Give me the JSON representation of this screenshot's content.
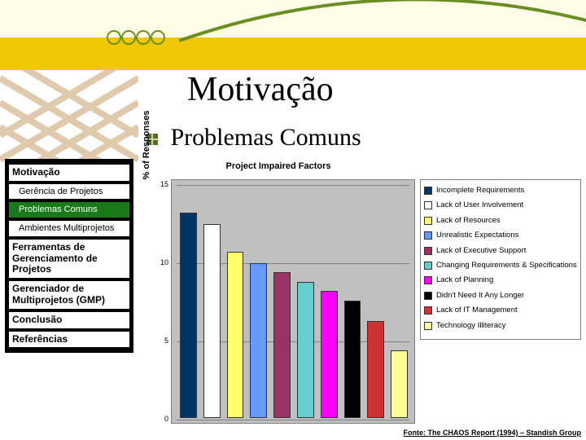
{
  "slide": {
    "title": "Motivação",
    "section": "Problemas Comuns"
  },
  "sidebar": {
    "items": [
      {
        "label": "Motivação",
        "kind": "head"
      },
      {
        "label": "Gerência de Projetos",
        "kind": "indent"
      },
      {
        "label": "Problemas Comuns",
        "kind": "active"
      },
      {
        "label": "Ambientes Multiprojetos",
        "kind": "indent"
      },
      {
        "label": "Ferramentas de Gerenciamento de Projetos",
        "kind": "head"
      },
      {
        "label": "Gerenciador de Multiprojetos (GMP)",
        "kind": "head"
      },
      {
        "label": "Conclusão",
        "kind": "head"
      },
      {
        "label": "Referências",
        "kind": "head"
      }
    ]
  },
  "chart": {
    "type": "bar",
    "title": "Project Impaired Factors",
    "y_label": "% of Responses",
    "y_min": 0,
    "y_max": 15,
    "y_ticks": [
      0,
      5,
      10,
      15
    ],
    "plot_bg": "#c0c0c0",
    "grid_color": "#808080",
    "series": [
      {
        "label": "Incomplete Requirements",
        "value": 13.1,
        "color": "#003366"
      },
      {
        "label": "Lack of User Involvement",
        "value": 12.4,
        "color": "#ffffff"
      },
      {
        "label": "Lack of Resources",
        "value": 10.6,
        "color": "#ffff66"
      },
      {
        "label": "Unrealistic Expectations",
        "value": 9.9,
        "color": "#6699ff"
      },
      {
        "label": "Lack of Executive Support",
        "value": 9.3,
        "color": "#993366"
      },
      {
        "label": "Changing Requirements & Specifications",
        "value": 8.7,
        "color": "#66cccc"
      },
      {
        "label": "Lack of Planning",
        "value": 8.1,
        "color": "#ff00ff"
      },
      {
        "label": "Didn't Need It Any Longer",
        "value": 7.5,
        "color": "#000000"
      },
      {
        "label": "Lack of IT Management",
        "value": 6.2,
        "color": "#cc3333"
      },
      {
        "label": "Technology Illiteracy",
        "value": 4.3,
        "color": "#ffff99"
      }
    ],
    "source_note": "Fonte: The CHAOS Report (1994) – Standish Group"
  },
  "deco": {
    "dot_color": "#6b8e23",
    "arc_color": "#6b8e23",
    "grid_color": "#d2b48c"
  }
}
